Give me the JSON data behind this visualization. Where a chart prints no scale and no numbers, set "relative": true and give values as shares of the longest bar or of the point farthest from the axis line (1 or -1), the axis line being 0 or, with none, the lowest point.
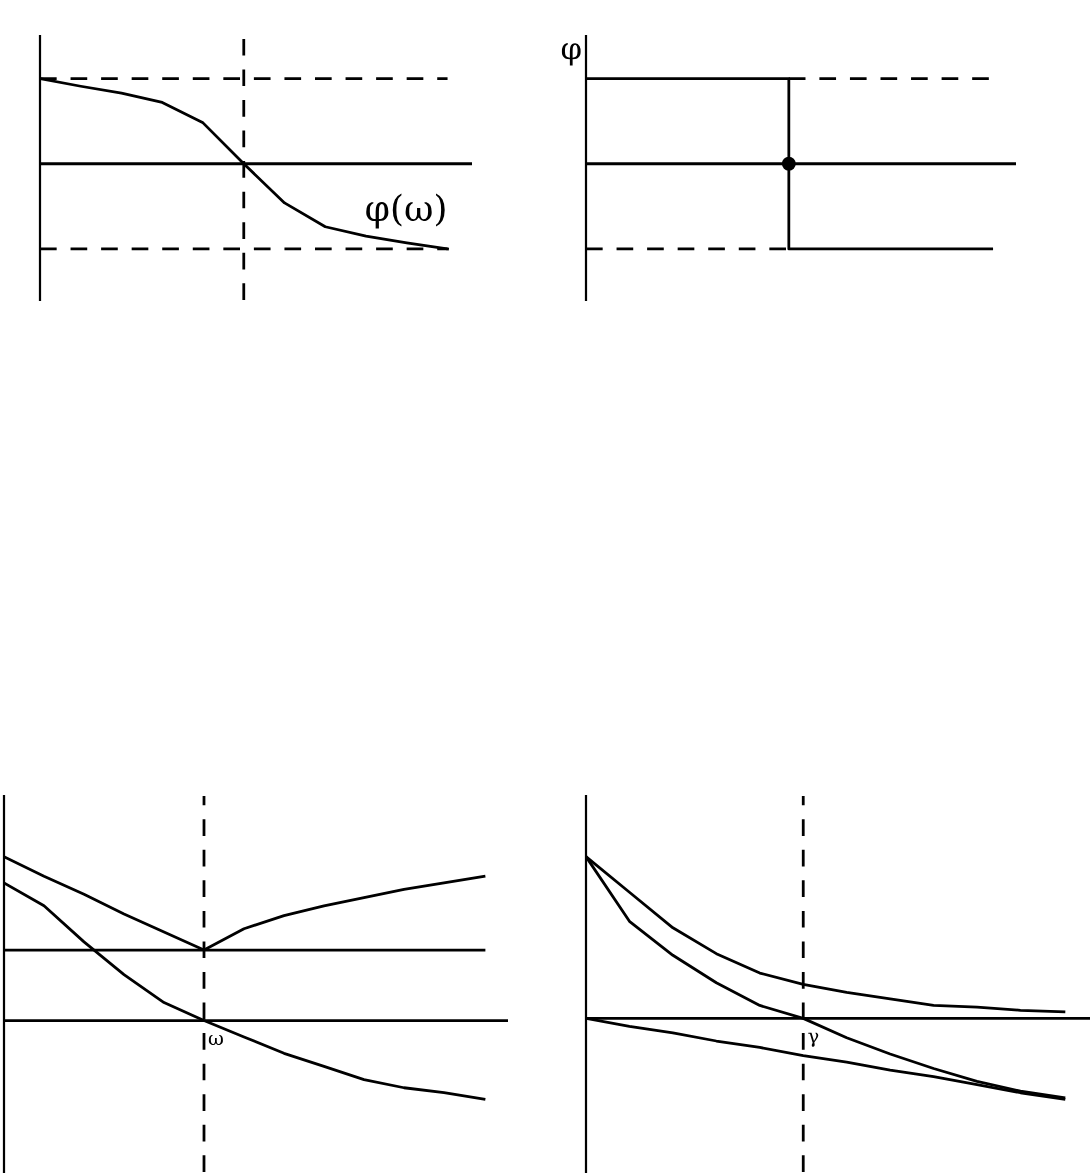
{
  "chart_data": [
    {
      "type": "line",
      "relative": true,
      "categories": [
        null,
        null,
        null,
        null,
        null,
        null,
        null,
        null,
        null,
        null,
        null
      ],
      "series": [
        {
          "color": "#000000",
          "values": [
            1.0,
            0.91,
            0.83,
            0.72,
            0.48,
            0,
            -0.46,
            -0.74,
            -0.85,
            -0.93,
            -1.0
          ]
        },
        {
          "color": "#000000",
          "line_style": "dashed",
          "values": [
            1,
            1,
            1,
            1,
            1,
            1,
            1,
            1,
            1,
            1,
            1
          ]
        },
        {
          "color": "#000000",
          "line_style": "dashed",
          "values": [
            -1,
            -1,
            -1,
            -1,
            -1,
            -1,
            -1,
            -1,
            -1,
            -1,
            -1
          ]
        }
      ],
      "annotations": [
        "φ(ω)"
      ]
    },
    {
      "type": "step",
      "relative": true,
      "ylabel": "φ",
      "categories": [
        null,
        null,
        null,
        null,
        null,
        null,
        null,
        null,
        null,
        null,
        null
      ],
      "series": [
        {
          "color": "#000000",
          "values": [
            1,
            1,
            1,
            1,
            1,
            -1,
            -1,
            -1,
            -1,
            -1,
            -1
          ]
        },
        {
          "type": "line",
          "color": "#000000",
          "line_style": "dashed",
          "values": [
            null,
            null,
            null,
            null,
            null,
            1,
            1,
            1,
            1,
            1,
            1
          ]
        },
        {
          "type": "line",
          "color": "#000000",
          "line_style": "dashed",
          "values": [
            -1,
            -1,
            -1,
            -1,
            -1,
            -1,
            null,
            null,
            null,
            null,
            null
          ]
        }
      ]
    },
    {
      "type": "line",
      "relative": true,
      "categories": [
        null,
        null,
        null,
        null,
        null,
        null,
        null,
        null,
        null,
        null,
        null,
        null,
        null
      ],
      "series": [
        {
          "color": "#000000",
          "values": [
            1.0,
            0.88,
            0.77,
            0.65,
            0.54,
            0.43,
            0.56,
            0.64,
            0.7,
            0.75,
            0.8,
            0.84,
            0.88
          ]
        },
        {
          "color": "#000000",
          "values": [
            0.84,
            0.7,
            0.48,
            0.28,
            0.11,
            0,
            -0.1,
            -0.2,
            -0.28,
            -0.36,
            -0.41,
            -0.44,
            -0.48
          ]
        },
        {
          "color": "#000000",
          "values": [
            0.43,
            0.43,
            0.43,
            0.43,
            0.43,
            0.43,
            0.43,
            0.43,
            0.43,
            0.43,
            0.43,
            0.43,
            0.43
          ]
        }
      ],
      "annotations": [
        "ω"
      ]
    },
    {
      "type": "line",
      "relative": true,
      "categories": [
        null,
        null,
        null,
        null,
        null,
        null,
        null,
        null,
        null,
        null,
        null,
        null
      ],
      "series": [
        {
          "color": "#000000",
          "values": [
            1.0,
            0.78,
            0.56,
            0.4,
            0.28,
            0.21,
            0.16,
            0.12,
            0.08,
            0.07,
            0.05,
            0.04
          ]
        },
        {
          "color": "#000000",
          "values": [
            1.0,
            0.6,
            0.39,
            0.22,
            0.08,
            0,
            -0.12,
            -0.22,
            -0.31,
            -0.39,
            -0.45,
            -0.49
          ]
        },
        {
          "color": "#000000",
          "values": [
            0,
            -0.05,
            -0.09,
            -0.14,
            -0.18,
            -0.23,
            -0.27,
            -0.32,
            -0.36,
            -0.41,
            -0.46,
            -0.5
          ]
        }
      ],
      "annotations": [
        "γ"
      ]
    }
  ]
}
